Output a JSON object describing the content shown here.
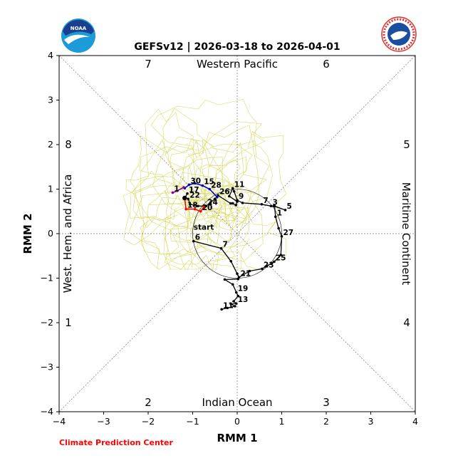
{
  "chart_data": {
    "type": "line",
    "title": "GEFSv12 | 2026-03-18 to 2026-04-01",
    "xlabel": "RMM 1",
    "ylabel": "RMM 2",
    "xlim": [
      -4,
      4
    ],
    "ylim": [
      -4,
      4
    ],
    "xticks": [
      "−4",
      "−3",
      "−2",
      "−1",
      "0",
      "1",
      "2",
      "3",
      "4"
    ],
    "yticks": [
      "−4",
      "−3",
      "−2",
      "−1",
      "0",
      "1",
      "2",
      "3",
      "4"
    ],
    "regions": {
      "top": "Western Pacific",
      "bottom": "Indian Ocean",
      "left": "West. Hem. and Africa",
      "right": "Maritime Continent"
    },
    "phases": [
      "1",
      "2",
      "3",
      "4",
      "5",
      "6",
      "7",
      "8"
    ],
    "start_label": "start",
    "credit": "Climate Prediction Center",
    "colors": {
      "observed": "#000000",
      "segment_red": "#ff0000",
      "segment_blue": "#0000cc",
      "segment_purple": "#8800aa",
      "ensemble": "#d4d44a",
      "credit": "#ff0000"
    },
    "observed_path": [
      {
        "x": -0.98,
        "y": -0.17,
        "label": "6"
      },
      {
        "x": -0.36,
        "y": -0.33,
        "label": "7"
      },
      {
        "x": -0.14,
        "y": -0.62
      },
      {
        "x": 0.0,
        "y": -0.9
      },
      {
        "x": 0.04,
        "y": -0.98,
        "label": "21"
      },
      {
        "x": 0.28,
        "y": -0.84
      },
      {
        "x": 0.56,
        "y": -0.79,
        "label": "23"
      },
      {
        "x": 0.66,
        "y": -0.73
      },
      {
        "x": 0.83,
        "y": -0.63,
        "label": "25"
      },
      {
        "x": 0.98,
        "y": -0.48
      },
      {
        "x": 1.0,
        "y": -0.06,
        "label": "27"
      },
      {
        "x": 0.93,
        "y": 0.12
      },
      {
        "x": 0.86,
        "y": 0.38,
        "label": "1"
      },
      {
        "x": 0.84,
        "y": 0.62
      },
      {
        "x": 1.08,
        "y": 0.53,
        "label": "5"
      },
      {
        "x": 0.82,
        "y": 0.62
      },
      {
        "x": 0.76,
        "y": 0.62,
        "label": "3"
      },
      {
        "x": 0.55,
        "y": 0.66,
        "label": "7"
      },
      {
        "x": 0.12,
        "y": 0.69
      },
      {
        "x": 0.0,
        "y": 0.75,
        "label": "9"
      },
      {
        "x": -0.07,
        "y": 0.95
      },
      {
        "x": -0.1,
        "y": 1.02,
        "label": "11"
      },
      {
        "x": -0.18,
        "y": 0.84
      },
      {
        "x": 0.0,
        "y": 0.72
      },
      {
        "x": -0.03,
        "y": 0.64
      },
      {
        "x": -0.1,
        "y": 0.68
      }
    ],
    "early_path": [
      {
        "x": 0.02,
        "y": -1.02
      },
      {
        "x": -0.28,
        "y": -1.03
      },
      {
        "x": -0.1,
        "y": -1.14
      },
      {
        "x": -0.02,
        "y": -1.32,
        "label": "19"
      },
      {
        "x": 0.02,
        "y": -1.4
      },
      {
        "x": -0.08,
        "y": -1.52
      },
      {
        "x": -0.02,
        "y": -1.57,
        "label": "13"
      },
      {
        "x": -0.14,
        "y": -1.58
      },
      {
        "x": -0.05,
        "y": -1.63
      },
      {
        "x": -0.22,
        "y": -1.67
      },
      {
        "x": -0.35,
        "y": -1.7,
        "label": "11"
      }
    ],
    "forecast_black": [
      {
        "x": -0.15,
        "y": 0.68
      },
      {
        "x": -0.43,
        "y": 0.86,
        "label": "26"
      },
      {
        "x": -0.5,
        "y": 0.78
      },
      {
        "x": -0.6,
        "y": 0.7
      },
      {
        "x": -0.7,
        "y": 0.62,
        "label": "24"
      },
      {
        "x": -0.88,
        "y": 0.62
      },
      {
        "x": -1.06,
        "y": 0.66
      },
      {
        "x": -1.1,
        "y": 0.78,
        "label": "22"
      },
      {
        "x": -1.18,
        "y": 0.8
      },
      {
        "x": -1.12,
        "y": 0.9,
        "label": "17"
      }
    ],
    "forecast_red": [
      {
        "x": -1.18,
        "y": 0.8
      },
      {
        "x": -1.15,
        "y": 0.55,
        "label": "18"
      },
      {
        "x": -0.95,
        "y": 0.55
      },
      {
        "x": -0.82,
        "y": 0.5,
        "label": "20"
      },
      {
        "x": -0.75,
        "y": 0.6
      }
    ],
    "forecast_blue": [
      {
        "x": -0.45,
        "y": 0.82
      },
      {
        "x": -0.62,
        "y": 1.0,
        "label": "28"
      },
      {
        "x": -0.78,
        "y": 1.08,
        "label": "15"
      },
      {
        "x": -0.95,
        "y": 1.13
      },
      {
        "x": -1.08,
        "y": 1.1,
        "label": "30"
      },
      {
        "x": -1.18,
        "y": 1.02
      }
    ],
    "forecast_purple": [
      {
        "x": -1.2,
        "y": 1.04
      },
      {
        "x": -1.35,
        "y": 0.96
      },
      {
        "x": -1.45,
        "y": 0.92,
        "label": "1"
      }
    ]
  }
}
